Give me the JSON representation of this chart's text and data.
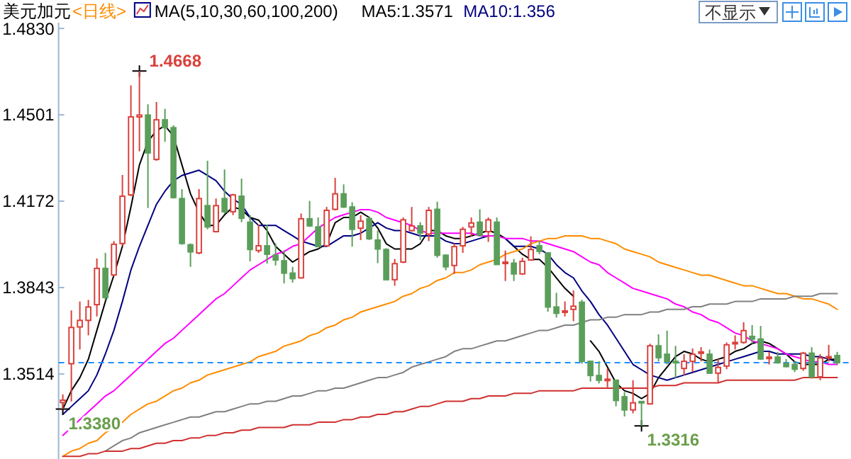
{
  "chart_data": {
    "type": "candlestick",
    "title": "美元加元",
    "subtitle": "<日线>",
    "legend_title": "MA(5,10,30,60,100,200)",
    "legend": "top left",
    "tick_labels": "y",
    "categories": [
      null,
      null,
      null,
      null,
      null,
      null,
      null,
      null,
      null,
      null,
      null,
      null,
      null,
      null,
      null,
      null,
      null,
      null,
      null,
      null,
      null,
      null,
      null,
      null,
      null,
      null,
      null,
      null,
      null,
      null,
      null,
      null,
      null,
      null,
      null,
      null,
      null,
      null,
      null,
      null,
      null,
      null,
      null,
      null,
      null,
      null,
      null,
      null,
      null,
      null,
      null,
      null,
      null,
      null,
      null,
      null,
      null,
      null,
      null,
      null,
      null,
      null,
      null,
      null,
      null,
      null,
      null,
      null,
      null,
      null,
      null,
      null,
      null,
      null,
      null,
      null,
      null,
      null,
      null,
      null,
      null,
      null,
      null,
      null,
      null,
      null,
      null,
      null,
      null,
      null,
      null,
      null
    ],
    "ohlc": [
      [
        1.3405,
        1.3436,
        1.338,
        1.3414
      ],
      [
        1.3553,
        1.3756,
        1.3409,
        1.3691
      ],
      [
        1.3693,
        1.379,
        1.3607,
        1.3718
      ],
      [
        1.3718,
        1.3796,
        1.3661,
        1.3769
      ],
      [
        1.3778,
        1.3954,
        1.3733,
        1.3916
      ],
      [
        1.3916,
        1.3975,
        1.3796,
        1.3805
      ],
      [
        1.3891,
        1.402,
        1.3886,
        1.4008
      ],
      [
        1.4011,
        1.4272,
        1.4002,
        1.4191
      ],
      [
        1.4196,
        1.4613,
        1.4191,
        1.4493
      ],
      [
        1.4493,
        1.4668,
        1.4362,
        1.45
      ],
      [
        1.45,
        1.4541,
        1.4146,
        1.4356
      ],
      [
        1.4331,
        1.455,
        1.4326,
        1.4482
      ],
      [
        1.4482,
        1.4524,
        1.4398,
        1.4452
      ],
      [
        1.4452,
        1.4461,
        1.4182,
        1.4186
      ],
      [
        1.4182,
        1.4218,
        1.4006,
        1.4011
      ],
      [
        1.4006,
        1.4011,
        1.3922,
        1.3979
      ],
      [
        1.3975,
        1.4218,
        1.397,
        1.4182
      ],
      [
        1.4155,
        1.4326,
        1.4065,
        1.4074
      ],
      [
        1.4056,
        1.4182,
        1.4053,
        1.4155
      ],
      [
        1.4182,
        1.4293,
        1.4125,
        1.4132
      ],
      [
        1.4132,
        1.42,
        1.4119,
        1.4196
      ],
      [
        1.4191,
        1.4258,
        1.4092,
        1.4107
      ],
      [
        1.4092,
        1.4119,
        1.3943,
        1.3988
      ],
      [
        1.3984,
        1.4083,
        1.3975,
        1.4002
      ],
      [
        1.4002,
        1.4083,
        1.3934,
        1.397
      ],
      [
        1.3966,
        1.4011,
        1.3927,
        1.3948
      ],
      [
        1.3945,
        1.3984,
        1.3859,
        1.3898
      ],
      [
        1.3898,
        1.3922,
        1.3862,
        1.3877
      ],
      [
        1.388,
        1.4125,
        1.3877,
        1.4105
      ],
      [
        1.4105,
        1.4173,
        1.4074,
        1.4078
      ],
      [
        1.4074,
        1.411,
        1.3997,
        1.3999
      ],
      [
        1.4002,
        1.415,
        1.3999,
        1.4137
      ],
      [
        1.4141,
        1.4261,
        1.4137,
        1.42
      ],
      [
        1.42,
        1.4236,
        1.4146,
        1.415
      ],
      [
        1.415,
        1.4168,
        1.3999,
        1.4065
      ],
      [
        1.4069,
        1.4119,
        1.4024,
        1.4096
      ],
      [
        1.4105,
        1.4114,
        1.4024,
        1.4029
      ],
      [
        1.4024,
        1.406,
        1.3936,
        1.399
      ],
      [
        1.3988,
        1.3993,
        1.3871,
        1.3873
      ],
      [
        1.3873,
        1.3952,
        1.385,
        1.3934
      ],
      [
        1.394,
        1.411,
        1.3936,
        1.4101
      ],
      [
        1.406,
        1.415,
        1.4056,
        1.4078
      ],
      [
        1.4078,
        1.4092,
        1.4024,
        1.4051
      ],
      [
        1.4047,
        1.415,
        1.402,
        1.4137
      ],
      [
        1.4141,
        1.417,
        1.3957,
        1.3966
      ],
      [
        1.3966,
        1.397,
        1.3909,
        1.3922
      ],
      [
        1.3927,
        1.4011,
        1.3895,
        1.3999
      ],
      [
        1.4002,
        1.4074,
        1.3975,
        1.4065
      ],
      [
        1.4074,
        1.411,
        1.4038,
        1.4089
      ],
      [
        1.4092,
        1.4141,
        1.4038,
        1.4042
      ],
      [
        1.4056,
        1.411,
        1.4017,
        1.4101
      ],
      [
        1.4092,
        1.411,
        1.3929,
        1.3931
      ],
      [
        1.3936,
        1.3984,
        1.3868,
        1.394
      ],
      [
        1.3936,
        1.3952,
        1.3868,
        1.3895
      ],
      [
        1.3895,
        1.3957,
        1.3891,
        1.3943
      ],
      [
        1.3948,
        1.4038,
        1.3945,
        1.3988
      ],
      [
        1.4002,
        1.402,
        1.397,
        1.3981
      ],
      [
        1.3975,
        1.3977,
        1.3751,
        1.3769
      ],
      [
        1.3769,
        1.3823,
        1.3729,
        1.3745
      ],
      [
        1.3751,
        1.379,
        1.3733,
        1.3754
      ],
      [
        1.376,
        1.3832,
        1.3715,
        1.3772
      ],
      [
        1.3787,
        1.3796,
        1.3553,
        1.3562
      ],
      [
        1.3562,
        1.3564,
        1.3485,
        1.3508
      ],
      [
        1.3508,
        1.3562,
        1.3478,
        1.349
      ],
      [
        1.349,
        1.3535,
        1.3463,
        1.3494
      ],
      [
        1.349,
        1.3492,
        1.3391,
        1.3413
      ],
      [
        1.3427,
        1.3445,
        1.3352,
        1.3377
      ],
      [
        1.3377,
        1.349,
        1.3364,
        1.3404
      ],
      [
        1.3409,
        1.3411,
        1.3316,
        1.3406
      ],
      [
        1.34,
        1.3629,
        1.3397,
        1.3621
      ],
      [
        1.3621,
        1.3665,
        1.3562,
        1.3576
      ],
      [
        1.3589,
        1.3679,
        1.355,
        1.3562
      ],
      [
        1.3562,
        1.3621,
        1.3499,
        1.3557
      ],
      [
        1.3535,
        1.3589,
        1.3508,
        1.3562
      ],
      [
        1.3562,
        1.3611,
        1.3521,
        1.3589
      ],
      [
        1.3593,
        1.3616,
        1.3562,
        1.3598
      ],
      [
        1.3589,
        1.3607,
        1.3514,
        1.3517
      ],
      [
        1.3517,
        1.3571,
        1.3478,
        1.3539
      ],
      [
        1.3544,
        1.3634,
        1.3532,
        1.3625
      ],
      [
        1.3629,
        1.3661,
        1.3607,
        1.3634
      ],
      [
        1.3634,
        1.3711,
        1.3629,
        1.3679
      ],
      [
        1.3657,
        1.37,
        1.3629,
        1.3647
      ],
      [
        1.3647,
        1.3697,
        1.3568,
        1.3571
      ],
      [
        1.3575,
        1.3598,
        1.355,
        1.3578
      ],
      [
        1.3578,
        1.3598,
        1.3553,
        1.3557
      ],
      [
        1.3553,
        1.3571,
        1.3539,
        1.3542
      ],
      [
        1.355,
        1.3562,
        1.3521,
        1.3532
      ],
      [
        1.3535,
        1.3598,
        1.3526,
        1.3593
      ],
      [
        1.3593,
        1.3616,
        1.3496,
        1.3503
      ],
      [
        1.3503,
        1.3589,
        1.349,
        1.3575
      ],
      [
        1.3575,
        1.3625,
        1.3562,
        1.358
      ],
      [
        1.3584,
        1.3598,
        1.355,
        1.3557
      ]
    ],
    "series": [
      {
        "type": "line",
        "name": "MA5:1.3571",
        "color": "#000000",
        "values": [
          1.338,
          1.345,
          1.35,
          1.357,
          1.368,
          1.379,
          1.389,
          1.4,
          1.415,
          1.431,
          1.44,
          1.444,
          1.446,
          1.442,
          1.431,
          1.42,
          1.413,
          1.408,
          1.408,
          1.412,
          1.415,
          1.414,
          1.411,
          1.41,
          1.406,
          1.4,
          1.397,
          1.394,
          1.396,
          1.398,
          1.399,
          1.401,
          1.409,
          1.411,
          1.411,
          1.413,
          1.411,
          1.407,
          1.401,
          1.399,
          1.399,
          1.399,
          1.401,
          1.406,
          1.406,
          1.404,
          1.403,
          1.403,
          1.404,
          1.405,
          1.406,
          1.405,
          1.403,
          1.4,
          1.397,
          1.395,
          1.395,
          1.392,
          1.388,
          1.384,
          1.381,
          null,
          1.364,
          1.36,
          1.354,
          1.348,
          1.345,
          1.344,
          1.342,
          1.344,
          1.35,
          1.354,
          1.358,
          1.36,
          1.359,
          1.357,
          1.356,
          1.357,
          1.358,
          1.36,
          1.361,
          1.363,
          1.364,
          1.363,
          1.361,
          1.359,
          1.356,
          1.355,
          1.355,
          1.355,
          1.357,
          1.357
        ]
      },
      {
        "type": "line",
        "name": "MA10:1.356",
        "color": "#000080",
        "values": [
          1.336,
          1.339,
          1.342,
          1.345,
          1.351,
          1.359,
          1.368,
          1.379,
          1.391,
          1.4,
          1.408,
          1.416,
          1.421,
          1.425,
          1.427,
          1.428,
          1.429,
          1.427,
          1.425,
          1.421,
          1.418,
          1.416,
          1.411,
          1.408,
          1.408,
          1.408,
          1.406,
          1.404,
          1.402,
          1.401,
          1.4,
          1.4,
          1.402,
          1.404,
          1.404,
          1.405,
          1.407,
          1.409,
          1.407,
          1.406,
          1.406,
          1.405,
          1.404,
          1.404,
          1.404,
          1.402,
          1.401,
          1.401,
          1.402,
          1.403,
          1.404,
          null,
          1.403,
          1.4,
          1.4,
          1.4,
          1.399,
          1.397,
          1.393,
          1.39,
          1.388,
          1.383,
          1.379,
          1.374,
          1.37,
          1.365,
          1.36,
          1.355,
          1.353,
          1.351,
          1.35,
          1.349,
          1.35,
          1.351,
          1.352,
          1.353,
          1.354,
          1.355,
          1.356,
          1.357,
          1.358,
          1.359,
          1.36,
          1.36,
          1.359,
          1.359,
          1.359,
          1.359,
          1.358,
          1.358,
          1.357,
          1.356
        ]
      },
      {
        "type": "line",
        "color": "#ff00ff",
        "values": [
          1.328,
          1.331,
          1.334,
          1.337,
          1.34,
          1.343,
          1.345,
          1.348,
          1.351,
          1.354,
          1.357,
          1.36,
          1.363,
          1.365,
          1.368,
          1.371,
          1.374,
          1.377,
          1.38,
          1.382,
          1.385,
          1.388,
          1.391,
          1.393,
          1.395,
          1.397,
          1.398,
          1.4,
          1.401,
          1.404,
          1.407,
          1.409,
          1.411,
          1.412,
          1.413,
          1.414,
          1.414,
          1.413,
          1.411,
          1.41,
          1.409,
          1.408,
          1.406,
          1.405,
          1.405,
          1.405,
          1.405,
          1.405,
          1.405,
          1.404,
          1.404,
          1.404,
          1.403,
          1.403,
          1.403,
          1.402,
          1.402,
          1.401,
          1.4,
          1.399,
          1.398,
          1.396,
          1.394,
          1.393,
          1.39,
          1.388,
          1.386,
          1.384,
          1.383,
          1.382,
          1.381,
          1.38,
          1.378,
          1.377,
          1.375,
          1.374,
          1.372,
          1.371,
          1.369,
          1.367,
          1.366,
          1.364,
          1.363,
          1.362,
          1.361,
          1.359,
          1.358,
          1.357,
          1.356,
          1.356,
          1.355,
          1.355
        ]
      },
      {
        "type": "line",
        "color": "#ff8c00",
        "values": [
          1.32,
          1.322,
          1.323,
          1.325,
          1.326,
          1.329,
          1.331,
          1.333,
          1.336,
          1.338,
          1.34,
          1.341,
          1.343,
          1.345,
          1.346,
          1.348,
          1.349,
          1.351,
          1.352,
          1.353,
          1.354,
          1.355,
          1.356,
          1.358,
          1.359,
          1.36,
          1.362,
          1.363,
          1.364,
          1.366,
          1.367,
          1.369,
          1.37,
          1.372,
          1.373,
          1.375,
          1.376,
          1.377,
          1.378,
          1.379,
          1.381,
          1.382,
          1.384,
          1.385,
          1.387,
          1.388,
          1.39,
          1.39,
          1.391,
          1.393,
          1.394,
          1.395,
          1.397,
          1.398,
          1.399,
          1.401,
          1.402,
          1.403,
          1.403,
          1.404,
          1.404,
          1.404,
          1.403,
          1.403,
          1.402,
          1.401,
          1.399,
          1.398,
          1.397,
          1.396,
          1.394,
          1.393,
          1.392,
          1.391,
          1.39,
          1.389,
          1.389,
          1.388,
          1.387,
          1.386,
          1.385,
          1.385,
          1.384,
          1.383,
          1.382,
          1.382,
          1.381,
          1.38,
          1.38,
          1.379,
          1.378,
          1.376
        ]
      },
      {
        "type": "line",
        "color": "#808080",
        "values": [
          null,
          null,
          null,
          null,
          null,
          1.322,
          1.324,
          1.326,
          1.327,
          1.329,
          1.33,
          1.331,
          1.332,
          1.333,
          1.334,
          1.335,
          1.335,
          1.336,
          1.337,
          1.337,
          1.338,
          1.339,
          1.34,
          1.34,
          1.341,
          1.341,
          1.342,
          1.343,
          1.343,
          1.344,
          1.345,
          1.345,
          1.346,
          1.346,
          1.347,
          1.348,
          1.349,
          1.35,
          1.35,
          1.351,
          1.352,
          1.354,
          1.355,
          1.356,
          1.357,
          1.358,
          1.36,
          1.361,
          1.361,
          1.362,
          1.363,
          1.364,
          1.364,
          1.365,
          1.366,
          1.367,
          1.368,
          1.368,
          1.369,
          1.37,
          1.37,
          1.371,
          1.372,
          1.372,
          1.373,
          1.373,
          1.374,
          1.374,
          1.374,
          1.375,
          1.375,
          1.376,
          1.376,
          1.376,
          1.377,
          1.377,
          1.378,
          1.378,
          1.378,
          1.379,
          1.379,
          1.379,
          1.38,
          1.38,
          1.38,
          1.38,
          1.381,
          1.381,
          1.381,
          1.382,
          1.382,
          1.382
        ]
      },
      {
        "type": "line",
        "color": "#d03030",
        "values": [
          1.32,
          1.32,
          1.32,
          1.321,
          1.321,
          1.322,
          1.322,
          1.322,
          1.323,
          1.323,
          1.324,
          1.325,
          1.325,
          1.326,
          1.326,
          1.327,
          1.327,
          1.328,
          1.328,
          1.329,
          1.329,
          1.33,
          1.33,
          1.331,
          1.331,
          1.331,
          1.331,
          1.332,
          1.332,
          1.332,
          1.333,
          1.333,
          1.333,
          1.334,
          1.334,
          1.335,
          1.335,
          1.336,
          1.336,
          1.337,
          1.337,
          1.338,
          1.339,
          1.339,
          1.34,
          1.341,
          1.341,
          1.341,
          1.342,
          1.342,
          1.343,
          1.343,
          1.343,
          1.344,
          1.344,
          1.344,
          1.345,
          1.345,
          1.345,
          1.345,
          1.345,
          1.346,
          1.346,
          1.346,
          1.346,
          1.346,
          1.346,
          1.346,
          1.346,
          1.346,
          1.347,
          1.347,
          1.347,
          1.348,
          1.348,
          1.348,
          1.348,
          1.348,
          1.349,
          1.349,
          1.349,
          1.349,
          1.349,
          1.349,
          1.349,
          1.349,
          1.349,
          1.35,
          1.35,
          1.35,
          1.35,
          1.35
        ]
      }
    ],
    "ylim": [
      1.319,
      1.4852
    ],
    "yticks": [
      {
        "value": 1.483,
        "label": "1.4830"
      },
      1.4501,
      1.4172,
      1.3843,
      1.3514
    ],
    "ref_lines": [
      {
        "axis": "y",
        "value": 1.3557,
        "color": "#1e90ff",
        "line_style": "dashed"
      }
    ],
    "annotations": [
      "1.4668",
      "1.3380",
      "1.3316",
      "不显示"
    ]
  }
}
